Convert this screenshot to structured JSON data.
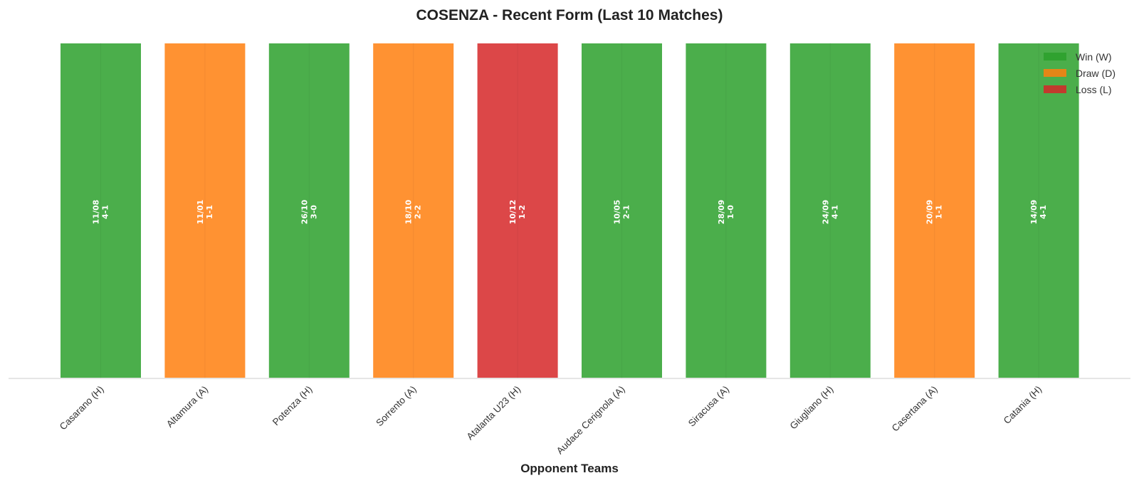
{
  "chart_data": {
    "type": "bar",
    "title": "COSENZA - Recent Form (Last 10 Matches)",
    "xlabel": "Opponent Teams",
    "ylabel": "",
    "ylim": [
      0,
      1
    ],
    "categories": [
      "Casarano (H)",
      "Altamura (A)",
      "Potenza (H)",
      "Sorrento (A)",
      "Atalanta U23 (H)",
      "Audace Cerignola (A)",
      "Siracusa (A)",
      "Giugliano (H)",
      "Casertana (A)",
      "Catania (H)"
    ],
    "values": [
      1,
      1,
      1,
      1,
      1,
      1,
      1,
      1,
      1,
      1
    ],
    "results": [
      "W",
      "D",
      "W",
      "D",
      "L",
      "W",
      "W",
      "W",
      "D",
      "W"
    ],
    "dates": [
      "11/08",
      "11/01",
      "26/10",
      "18/10",
      "10/12",
      "10/05",
      "28/09",
      "24/09",
      "20/09",
      "14/09"
    ],
    "scores": [
      "4-1",
      "1-1",
      "3-0",
      "2-2",
      "1-2",
      "2-1",
      "1-0",
      "4-1",
      "1-1",
      "4-1"
    ],
    "legend": {
      "position": "top-right",
      "entries": [
        {
          "key": "W",
          "label": "Win (W)",
          "color": "#2ca02c"
        },
        {
          "key": "D",
          "label": "Draw (D)",
          "color": "#ff7f0e"
        },
        {
          "key": "L",
          "label": "Loss (L)",
          "color": "#d62728"
        }
      ]
    },
    "bar_alpha": 0.85,
    "grid": false,
    "yaxis_visible": false
  }
}
